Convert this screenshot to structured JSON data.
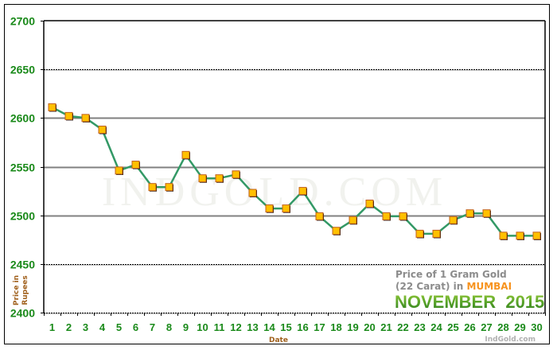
{
  "chart_data": {
    "type": "line",
    "title": "Price of 1 Gram Gold (22 Carat) in MUMBAI",
    "subtitle": "NOVEMBER 2015",
    "xlabel": "Date",
    "ylabel": "Price in Rupees",
    "ylim": [
      2400,
      2700
    ],
    "yticks": [
      2400,
      2450,
      2500,
      2550,
      2600,
      2650,
      2700
    ],
    "grid": true,
    "legend_position": "bottom-right",
    "categories": [
      "1",
      "2",
      "3",
      "4",
      "5",
      "6",
      "7",
      "8",
      "9",
      "10",
      "11",
      "12",
      "13",
      "14",
      "15",
      "16",
      "17",
      "18",
      "19",
      "20",
      "21",
      "22",
      "23",
      "24",
      "25",
      "26",
      "27",
      "28",
      "29",
      "30"
    ],
    "series": [
      {
        "name": "Price of 1 Gram Gold (22 Carat)",
        "values": [
          2611,
          2602,
          2600,
          2588,
          2546,
          2552,
          2529,
          2529,
          2562,
          2538,
          2538,
          2542,
          2523,
          2507,
          2507,
          2525,
          2499,
          2484,
          2495,
          2512,
          2499,
          2499,
          2481,
          2481,
          2495,
          2502,
          2502,
          2479,
          2479,
          2479
        ]
      }
    ],
    "colors": {
      "line": "#339966",
      "marker_fill": "#ffc000",
      "marker_border": "#c0601c",
      "tick_labels": "#1a8a1a",
      "axis_title": "#a0601c",
      "city": "#f7931e"
    }
  },
  "labels": {
    "ylabel_line1": "Price in",
    "ylabel_line2": "Rupees",
    "xlabel": "Date",
    "legend_line1": "Price of 1 Gram Gold",
    "legend_line2_prefix": "(22 Carat) in ",
    "legend_city": "MUMBAI",
    "legend_month": "NOVEMBER  2015",
    "watermark": "INDGOLD.COM",
    "credit": "IndGold.com"
  }
}
